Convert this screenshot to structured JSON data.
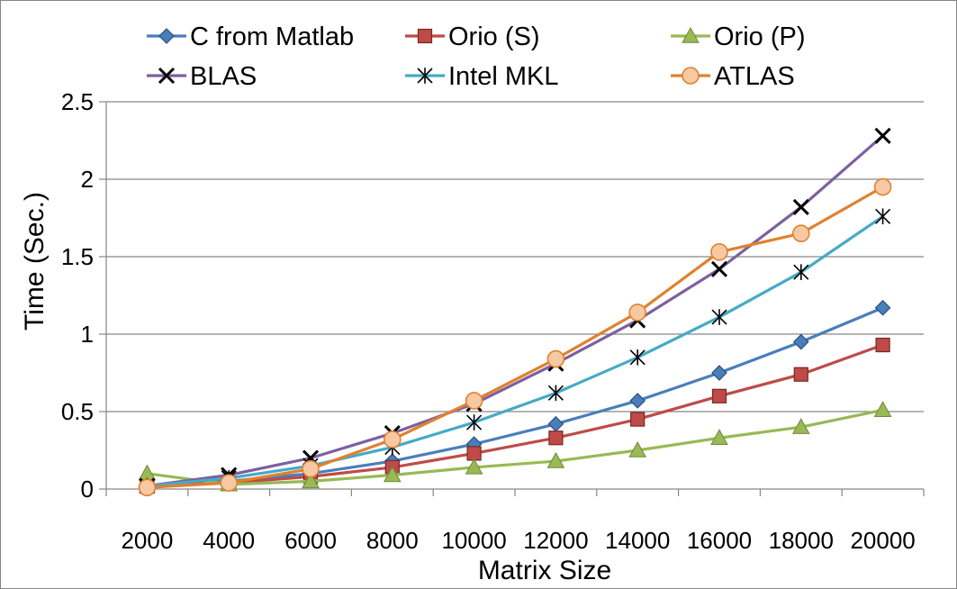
{
  "chart_data": {
    "type": "line",
    "title": "",
    "xlabel": "Matrix Size",
    "ylabel": "Time (Sec.)",
    "x": [
      2000,
      4000,
      6000,
      8000,
      10000,
      12000,
      14000,
      16000,
      18000,
      20000
    ],
    "x_tick_labels": [
      "2000",
      "4000",
      "6000",
      "8000",
      "10000",
      "12000",
      "14000",
      "16000",
      "18000",
      "20000"
    ],
    "ylim": [
      0,
      2.5
    ],
    "y_ticks": [
      0,
      0.5,
      1,
      1.5,
      2,
      2.5
    ],
    "y_tick_labels": [
      "0",
      "0.5",
      "1",
      "1.5",
      "2",
      "2.5"
    ],
    "grid": "horizontal",
    "legend_position": "top",
    "series": [
      {
        "name": "C from Matlab",
        "color": "#4A7EBB",
        "marker": "diamond",
        "values": [
          0.02,
          0.05,
          0.1,
          0.18,
          0.29,
          0.42,
          0.57,
          0.75,
          0.95,
          1.17
        ]
      },
      {
        "name": "Orio (S)",
        "color": "#BE4B48",
        "marker": "square",
        "values": [
          0.02,
          0.04,
          0.08,
          0.14,
          0.23,
          0.33,
          0.45,
          0.6,
          0.74,
          0.93
        ]
      },
      {
        "name": "Orio (P)",
        "color": "#98B954",
        "marker": "triangle",
        "values": [
          0.1,
          0.03,
          0.05,
          0.09,
          0.14,
          0.18,
          0.25,
          0.33,
          0.4,
          0.51
        ]
      },
      {
        "name": "BLAS",
        "color": "#7D60A0",
        "marker": "x",
        "values": [
          0.02,
          0.09,
          0.2,
          0.36,
          0.55,
          0.81,
          1.09,
          1.42,
          1.82,
          2.28
        ]
      },
      {
        "name": "Intel MKL",
        "color": "#46AAC5",
        "marker": "star",
        "values": [
          0.02,
          0.07,
          0.15,
          0.27,
          0.43,
          0.62,
          0.85,
          1.11,
          1.4,
          1.76
        ]
      },
      {
        "name": "ATLAS",
        "color": "#E0812F",
        "marker": "circle",
        "values": [
          0.01,
          0.04,
          0.13,
          0.32,
          0.57,
          0.84,
          1.14,
          1.53,
          1.65,
          1.95
        ]
      }
    ]
  }
}
